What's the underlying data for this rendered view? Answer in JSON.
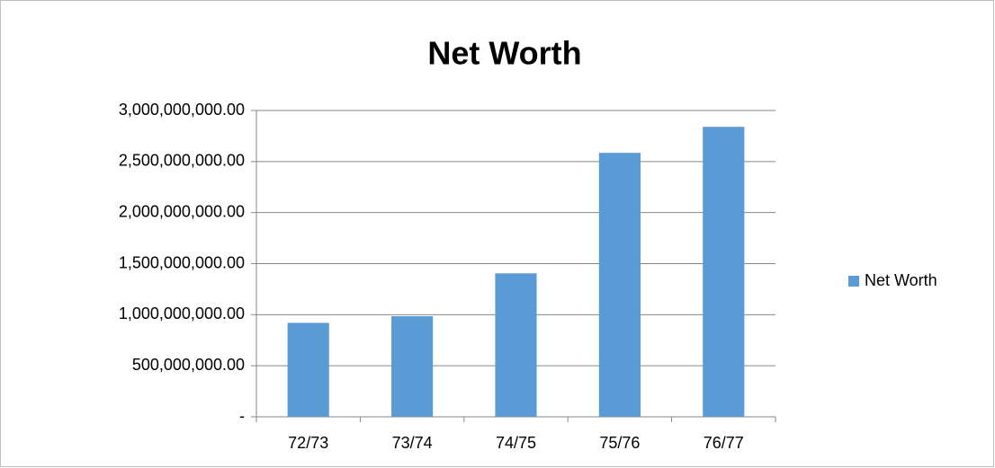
{
  "chart_data": {
    "type": "bar",
    "title": "Net Worth",
    "categories": [
      "72/73",
      "73/74",
      "74/75",
      "75/76",
      "76/77"
    ],
    "series": [
      {
        "name": "Net Worth",
        "color": "#5b9bd5",
        "values": [
          920000000,
          985000000,
          1405000000,
          2585000000,
          2840000000
        ]
      }
    ],
    "ylim": [
      0,
      3000000000
    ],
    "yticks": [
      {
        "value": 0,
        "label": "-"
      },
      {
        "value": 500000000,
        "label": "500,000,000.00"
      },
      {
        "value": 1000000000,
        "label": "1,000,000,000.00"
      },
      {
        "value": 1500000000,
        "label": "1,500,000,000.00"
      },
      {
        "value": 2000000000,
        "label": "2,000,000,000.00"
      },
      {
        "value": 2500000000,
        "label": "2,500,000,000.00"
      },
      {
        "value": 3000000000,
        "label": "3,000,000,000.00"
      }
    ],
    "grid": true,
    "legend": "right"
  }
}
